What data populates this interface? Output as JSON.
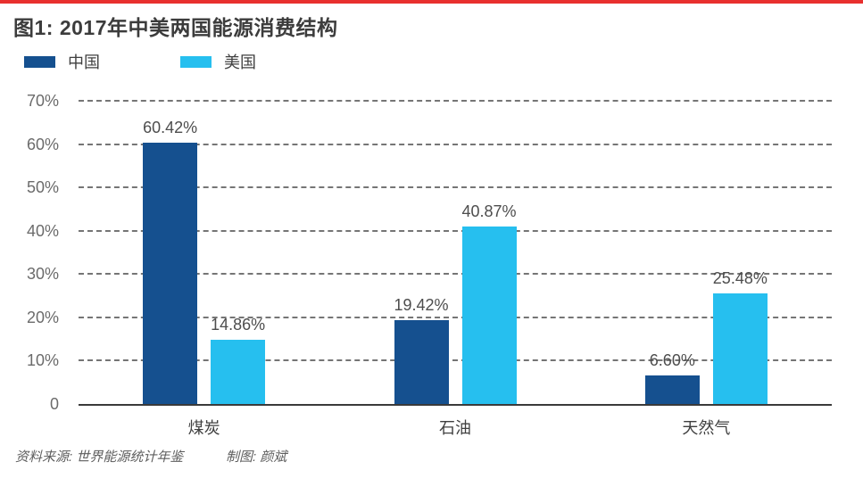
{
  "page_title": "图1: 2017年中美两国能源消费结构",
  "colors": {
    "china_series": "#15508F",
    "usa_series": "#26BFEF",
    "top_rule": "#E8302E",
    "gridline": "#757575",
    "axis_line": "#3A3A3A",
    "tick_text": "#6B6B6B",
    "value_label_text": "#4D4D4D",
    "title_text": "#3C3C3C",
    "footer_text": "#5E5E5E"
  },
  "footer": {
    "source": "资料来源: 世界能源统计年鉴",
    "credit": "制图: 颜斌"
  },
  "chart_data": {
    "type": "bar",
    "title": "图1: 2017年中美两国能源消费结构",
    "categories": [
      "煤炭",
      "石油",
      "天然气"
    ],
    "series": [
      {
        "name": "中国",
        "color": "#15508F",
        "values": [
          60.42,
          19.42,
          6.6
        ],
        "value_labels": [
          "60.42%",
          "19.42%",
          "6.60%"
        ]
      },
      {
        "name": "美国",
        "color": "#26BFEF",
        "values": [
          14.86,
          40.87,
          25.48
        ],
        "value_labels": [
          "14.86%",
          "40.87%",
          "25.48%"
        ]
      }
    ],
    "xlabel": "",
    "ylabel": "",
    "ylim": [
      0,
      70
    ],
    "yticks": [
      {
        "value": 70,
        "label": "70%"
      },
      {
        "value": 60,
        "label": "60%"
      },
      {
        "value": 50,
        "label": "50%"
      },
      {
        "value": 40,
        "label": "40%"
      },
      {
        "value": 30,
        "label": "30%"
      },
      {
        "value": 20,
        "label": "20%"
      },
      {
        "value": 10,
        "label": "10%"
      },
      {
        "value": 0,
        "label": "0"
      }
    ],
    "grid": "horizontal-dashed",
    "legend_position": "top-left"
  }
}
